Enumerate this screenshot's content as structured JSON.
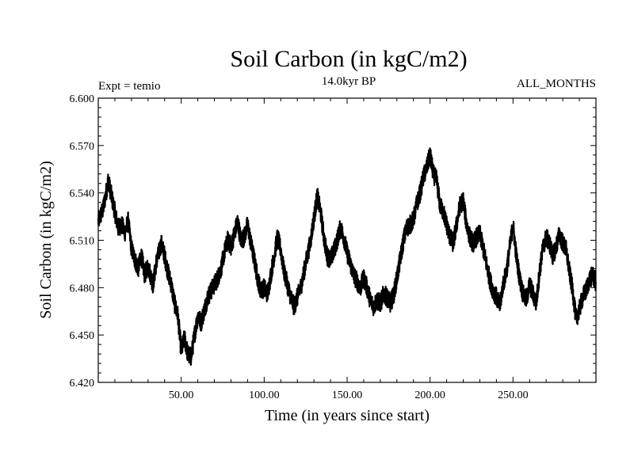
{
  "chart_data": {
    "type": "line",
    "title": "Soil Carbon (in kgC/m2)",
    "subtitle_left": "Expt = temio",
    "subtitle_center": "14.0kyr BP",
    "subtitle_right": "ALL_MONTHS",
    "xlabel": "Time (in years since start)",
    "ylabel": "Soil Carbon (in kgC/m2)",
    "xlim": [
      0,
      300
    ],
    "ylim": [
      6.42,
      6.6
    ],
    "x_ticks": [
      50,
      100,
      150,
      200,
      250
    ],
    "x_tick_labels": [
      "50.00",
      "100.00",
      "150.00",
      "200.00",
      "250.00"
    ],
    "y_ticks": [
      6.42,
      6.45,
      6.48,
      6.51,
      6.54,
      6.57,
      6.6
    ],
    "y_tick_labels": [
      "6.420",
      "6.450",
      "6.480",
      "6.510",
      "6.540",
      "6.570",
      "6.600"
    ],
    "series": [
      {
        "name": "Soil Carbon",
        "x": [
          0,
          3,
          6,
          8,
          10,
          12,
          14,
          16,
          18,
          20,
          22,
          24,
          26,
          28,
          30,
          33,
          35,
          38,
          40,
          42,
          44,
          46,
          48,
          50,
          52,
          54,
          56,
          58,
          60,
          62,
          64,
          66,
          68,
          70,
          72,
          74,
          76,
          78,
          80,
          82,
          84,
          86,
          88,
          90,
          92,
          94,
          96,
          98,
          100,
          102,
          104,
          106,
          108,
          110,
          112,
          114,
          116,
          118,
          120,
          122,
          124,
          126,
          128,
          130,
          132,
          134,
          136,
          138,
          140,
          142,
          144,
          146,
          148,
          150,
          152,
          154,
          156,
          158,
          160,
          162,
          164,
          166,
          168,
          170,
          172,
          174,
          176,
          178,
          180,
          182,
          184,
          186,
          188,
          190,
          192,
          194,
          196,
          198,
          200,
          202,
          204,
          206,
          208,
          210,
          212,
          214,
          216,
          218,
          220,
          222,
          224,
          226,
          228,
          230,
          232,
          234,
          236,
          238,
          240,
          242,
          244,
          246,
          248,
          250,
          252,
          254,
          256,
          258,
          260,
          262,
          264,
          266,
          268,
          270,
          272,
          274,
          276,
          278,
          280,
          282,
          284,
          286,
          288,
          290,
          292,
          294,
          296,
          298,
          300
        ],
        "values": [
          6.522,
          6.53,
          6.548,
          6.538,
          6.528,
          6.518,
          6.52,
          6.515,
          6.522,
          6.505,
          6.498,
          6.492,
          6.5,
          6.488,
          6.494,
          6.482,
          6.496,
          6.508,
          6.5,
          6.49,
          6.482,
          6.47,
          6.462,
          6.44,
          6.448,
          6.438,
          6.436,
          6.45,
          6.462,
          6.458,
          6.466,
          6.474,
          6.478,
          6.482,
          6.486,
          6.492,
          6.502,
          6.51,
          6.506,
          6.514,
          6.522,
          6.51,
          6.512,
          6.52,
          6.508,
          6.498,
          6.486,
          6.478,
          6.48,
          6.476,
          6.488,
          6.5,
          6.512,
          6.504,
          6.49,
          6.482,
          6.474,
          6.468,
          6.474,
          6.48,
          6.49,
          6.5,
          6.51,
          6.524,
          6.538,
          6.528,
          6.512,
          6.5,
          6.498,
          6.503,
          6.51,
          6.518,
          6.512,
          6.502,
          6.495,
          6.488,
          6.484,
          6.48,
          6.486,
          6.48,
          6.472,
          6.468,
          6.472,
          6.47,
          6.476,
          6.474,
          6.47,
          6.475,
          6.486,
          6.498,
          6.51,
          6.518,
          6.52,
          6.523,
          6.533,
          6.54,
          6.55,
          6.556,
          6.564,
          6.552,
          6.548,
          6.532,
          6.528,
          6.52,
          6.512,
          6.508,
          6.52,
          6.532,
          6.535,
          6.52,
          6.512,
          6.508,
          6.512,
          6.514,
          6.505,
          6.495,
          6.485,
          6.478,
          6.474,
          6.468,
          6.482,
          6.49,
          6.505,
          6.52,
          6.5,
          6.486,
          6.476,
          6.472,
          6.482,
          6.476,
          6.47,
          6.49,
          6.505,
          6.512,
          6.508,
          6.5,
          6.506,
          6.514,
          6.508,
          6.504,
          6.49,
          6.478,
          6.46,
          6.466,
          6.474,
          6.478,
          6.485,
          6.488,
          6.483
        ]
      }
    ]
  }
}
